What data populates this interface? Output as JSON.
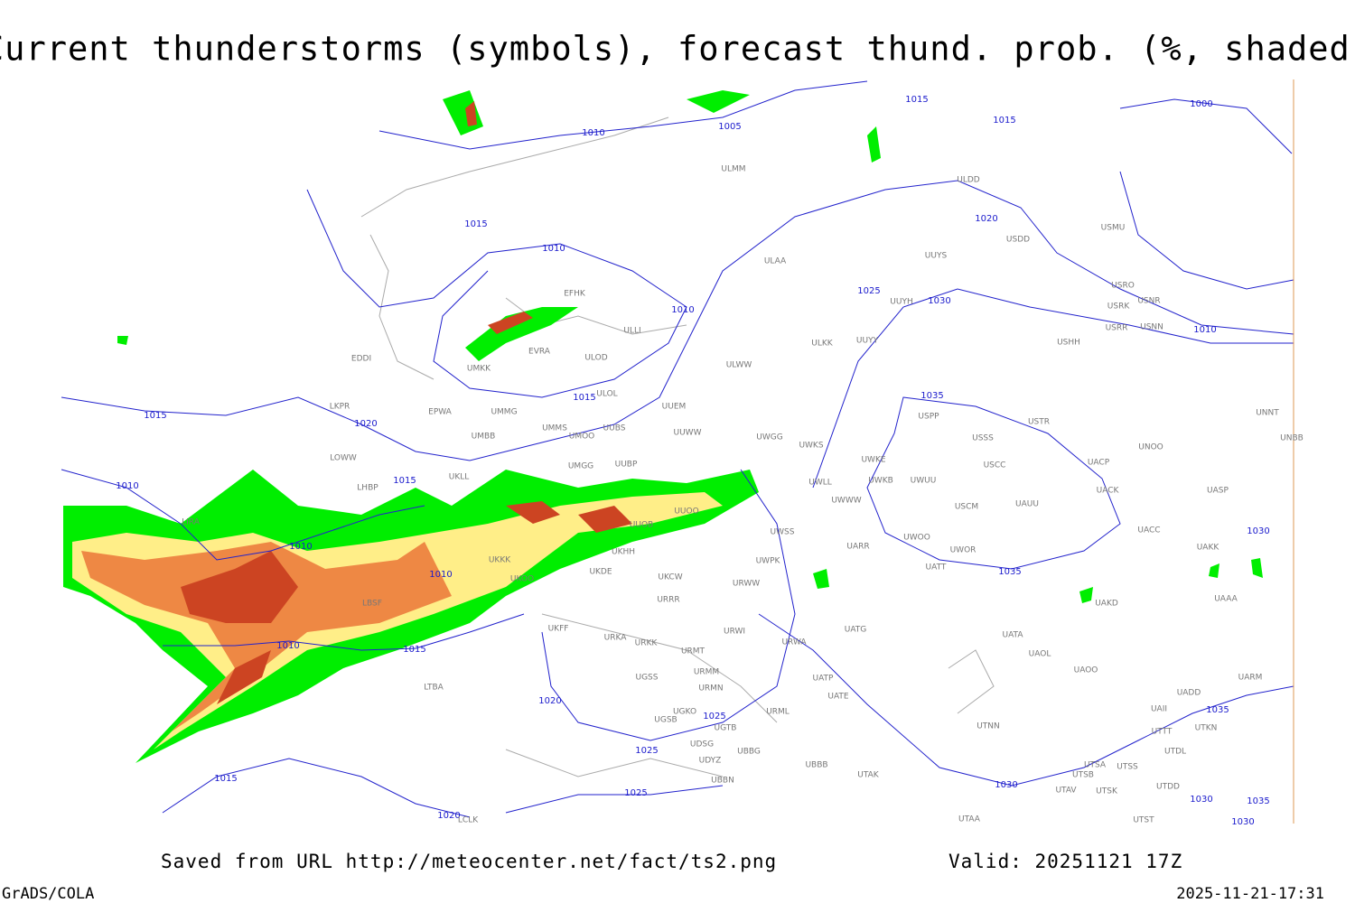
{
  "header": {
    "title": "Current thunderstorms (symbols), forecast thund. prob. (%, shaded)"
  },
  "map": {
    "isobar_labels": [
      "1015",
      "1015",
      "1000",
      "1010",
      "1005",
      "1015",
      "1010",
      "1020",
      "1025",
      "1030",
      "1010",
      "1010",
      "1015",
      "1015",
      "1020",
      "1035",
      "1010",
      "1015",
      "1010",
      "1010",
      "1030",
      "1035",
      "1010",
      "1015",
      "1020",
      "1025",
      "1025",
      "1025",
      "1020",
      "1030",
      "1035",
      "1030",
      "1035",
      "1030",
      "1015"
    ],
    "stations": [
      "ULMM",
      "ULDD",
      "USDD",
      "USMU",
      "UUYS",
      "ULAA",
      "USRO",
      "USNR",
      "USRK",
      "USRR",
      "USNN",
      "UUYH",
      "EFHK",
      "ULLI",
      "UUYY",
      "ULKK",
      "USHH",
      "EVRA",
      "ULOD",
      "UMKK",
      "ULWW",
      "ULOL",
      "UUEM",
      "EDDI",
      "LKPR",
      "EPWA",
      "UMMG",
      "UMMS",
      "UUBS",
      "UMOO",
      "UUWW",
      "UMBB",
      "UWGG",
      "UWKS",
      "USPP",
      "USTR",
      "USSS",
      "UNNT",
      "UNBB",
      "UNOO",
      "UACP",
      "LOWW",
      "UKLL",
      "UMGG",
      "UUBP",
      "UWKE",
      "USCC",
      "LHBP",
      "UWLL",
      "UWKB",
      "UWUU",
      "UACK",
      "UASP",
      "LIRA",
      "UUOO",
      "UWWW",
      "USCM",
      "UAUU",
      "UUOB",
      "UWSS",
      "UACC",
      "UAKK",
      "UARR",
      "UWOO",
      "UWOR",
      "UKKK",
      "UKHH",
      "UKDE",
      "UWPK",
      "UATT",
      "UKOO",
      "UKCW",
      "URWW",
      "URRR",
      "UAKD",
      "UAAA",
      "LBSF",
      "UKFF",
      "UATG",
      "URWI",
      "URKA",
      "URKK",
      "URWA",
      "UATA",
      "URMT",
      "UAOL",
      "LTBA",
      "UGSS",
      "URMM",
      "UAOO",
      "UATP",
      "URMN",
      "UARM",
      "UADD",
      "UATE",
      "UGKO",
      "UGSB",
      "UGTB",
      "URML",
      "UAII",
      "UTNN",
      "UTTT",
      "UTKN",
      "UTDL",
      "UDSG",
      "UBBG",
      "UDYZ",
      "UBBB",
      "UTSA",
      "UTSS",
      "UTAK",
      "UTSB",
      "UBBN",
      "UTDD",
      "UTAV",
      "UTSK",
      "LCLK",
      "UTAA",
      "UTST"
    ]
  },
  "footer": {
    "source": "Saved from URL http://meteocenter.net/fact/ts2.png",
    "valid": "Valid: 20251121 17Z",
    "software": "GrADS/COLA",
    "timestamp": "2025-11-21-17:31"
  }
}
